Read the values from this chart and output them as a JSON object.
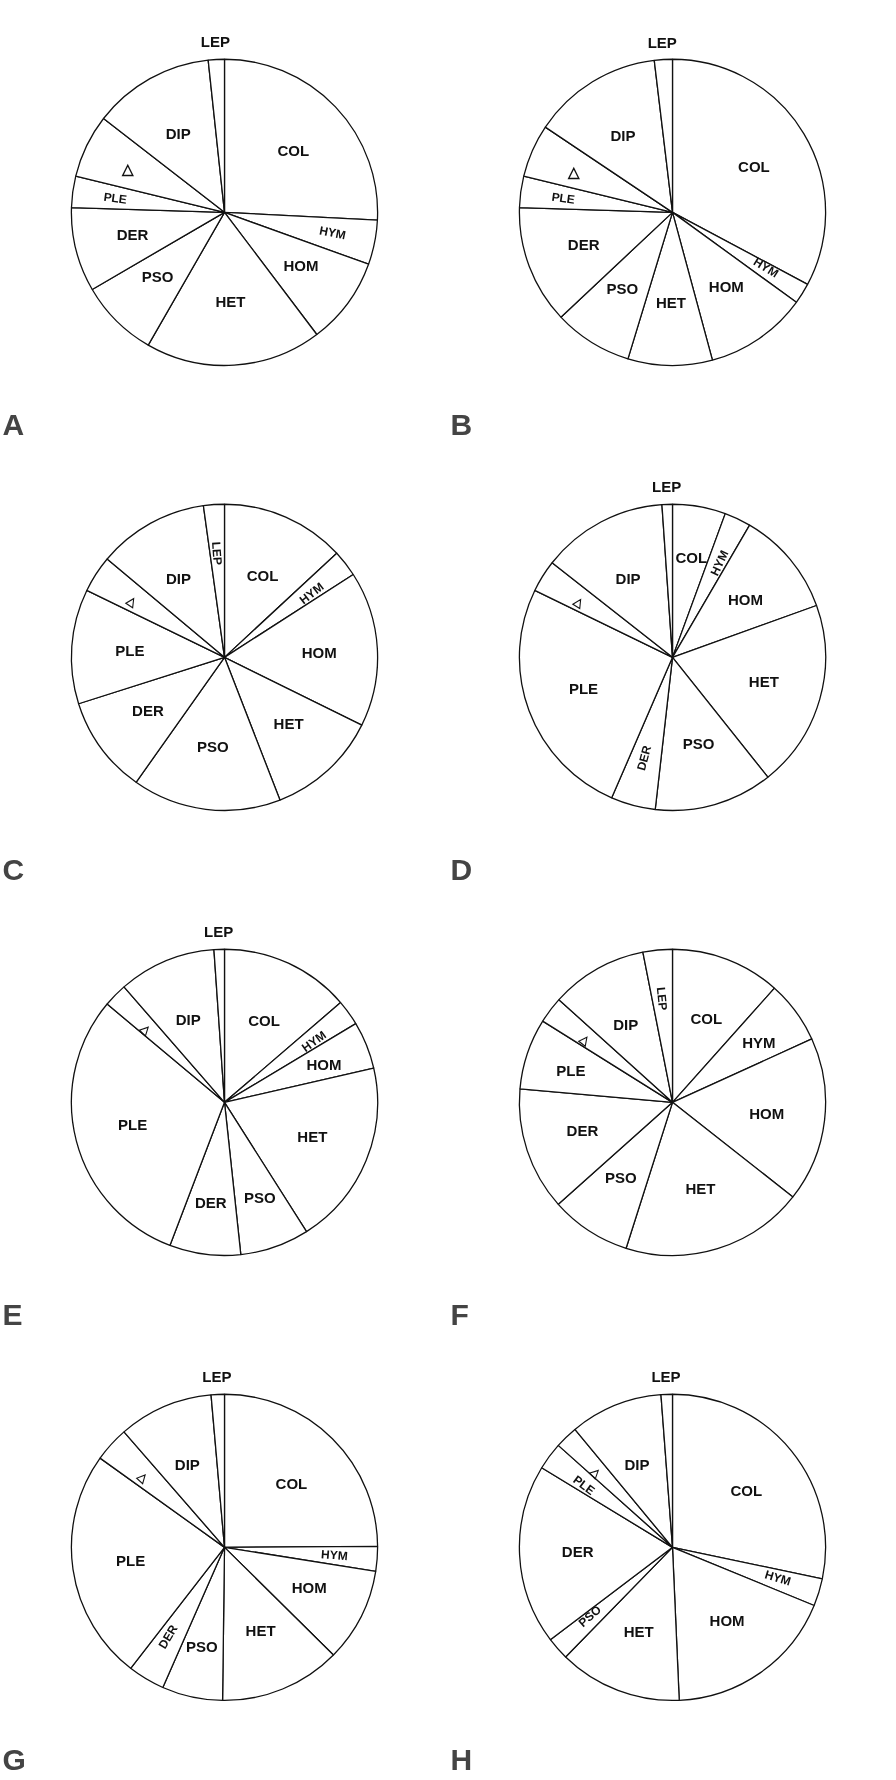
{
  "chart_data": [
    {
      "type": "pie",
      "title": "A",
      "categories": [
        "COL",
        "HYM",
        "HOM",
        "HET",
        "PSO",
        "DER",
        "PLE",
        "△",
        "DIP",
        "LEP"
      ],
      "values": [
        25.8,
        4.7,
        9.2,
        18.6,
        8.3,
        8.9,
        3.3,
        6.7,
        12.8,
        1.7
      ],
      "colors": [
        "#ffffff",
        "#ffffff",
        "#ffffff",
        "#ffffff",
        "#ffffff",
        "#ffffff",
        "#ffffff",
        "#ffffff",
        "#ffffff",
        "#ffffff"
      ]
    },
    {
      "type": "pie",
      "title": "B",
      "categories": [
        "COL",
        "HYM",
        "HOM",
        "HET",
        "PSO",
        "DER",
        "PLE",
        "△",
        "DIP",
        "LEP"
      ],
      "values": [
        32.8,
        2.2,
        10.8,
        8.9,
        8.3,
        12.5,
        3.3,
        5.6,
        13.7,
        1.9
      ],
      "colors": [
        "#ffffff",
        "#ffffff",
        "#ffffff",
        "#ffffff",
        "#ffffff",
        "#ffffff",
        "#ffffff",
        "#ffffff",
        "#ffffff",
        "#ffffff"
      ]
    },
    {
      "type": "pie",
      "title": "C",
      "categories": [
        "COL",
        "HYM",
        "HOM",
        "HET",
        "PSO",
        "DER",
        "PLE",
        "△",
        "DIP",
        "LEP"
      ],
      "values": [
        13.1,
        2.8,
        16.4,
        11.8,
        15.7,
        10.3,
        12.1,
        3.9,
        11.7,
        2.2
      ],
      "colors": [
        "#ffffff",
        "#ffffff",
        "#ffffff",
        "#ffffff",
        "#ffffff",
        "#ffffff",
        "#ffffff",
        "#ffffff",
        "#ffffff",
        "#ffffff"
      ]
    },
    {
      "type": "pie",
      "title": "D",
      "categories": [
        "COL",
        "HYM",
        "HOM",
        "HET",
        "PSO",
        "DER",
        "PLE",
        "△",
        "DIP",
        "LEP"
      ],
      "values": [
        5.6,
        2.8,
        11.1,
        19.8,
        12.5,
        4.7,
        25.7,
        3.4,
        13.3,
        1.1
      ],
      "colors": [
        "#ffffff",
        "#ffffff",
        "#ffffff",
        "#ffffff",
        "#ffffff",
        "#ffffff",
        "#ffffff",
        "#ffffff",
        "#ffffff",
        "#ffffff"
      ]
    },
    {
      "type": "pie",
      "title": "E",
      "categories": [
        "COL",
        "HYM",
        "HOM",
        "HET",
        "PSO",
        "DER",
        "PLE",
        "△",
        "DIP",
        "LEP"
      ],
      "values": [
        13.7,
        2.7,
        5.0,
        19.6,
        7.3,
        7.5,
        30.3,
        2.5,
        10.3,
        1.1
      ],
      "colors": [
        "#ffffff",
        "#ffffff",
        "#ffffff",
        "#ffffff",
        "#ffffff",
        "#ffffff",
        "#ffffff",
        "#ffffff",
        "#ffffff",
        "#ffffff"
      ]
    },
    {
      "type": "pie",
      "title": "F",
      "categories": [
        "COL",
        "HYM",
        "HOM",
        "HET",
        "PSO",
        "DER",
        "PLE",
        "△",
        "DIP",
        "LEP"
      ],
      "values": [
        11.6,
        6.6,
        17.4,
        19.3,
        8.5,
        13.0,
        7.5,
        2.8,
        10.2,
        3.1
      ],
      "colors": [
        "#ffffff",
        "#ffffff",
        "#ffffff",
        "#ffffff",
        "#ffffff",
        "#ffffff",
        "#ffffff",
        "#ffffff",
        "#ffffff",
        "#ffffff"
      ]
    },
    {
      "type": "pie",
      "title": "G",
      "categories": [
        "COL",
        "HYM",
        "HOM",
        "HET",
        "PSO",
        "DER",
        "PLE",
        "△",
        "DIP",
        "LEP"
      ],
      "values": [
        24.9,
        2.6,
        9.9,
        12.8,
        6.4,
        3.9,
        24.4,
        3.7,
        10.0,
        1.4
      ],
      "colors": [
        "#ffffff",
        "#ffffff",
        "#ffffff",
        "#ffffff",
        "#ffffff",
        "#ffffff",
        "#ffffff",
        "#ffffff",
        "#ffffff",
        "#ffffff"
      ]
    },
    {
      "type": "pie",
      "title": "H",
      "categories": [
        "COL",
        "HYM",
        "HOM",
        "HET",
        "PSO",
        "DER",
        "PLE",
        "△",
        "DIP",
        "LEP"
      ],
      "values": [
        28.3,
        2.9,
        18.1,
        13.0,
        2.4,
        19.0,
        2.9,
        2.4,
        9.8,
        1.2
      ],
      "colors": [
        "#ffffff",
        "#ffffff",
        "#ffffff",
        "#ffffff",
        "#ffffff",
        "#ffffff",
        "#ffffff",
        "#ffffff",
        "#ffffff",
        "#ffffff"
      ]
    }
  ]
}
